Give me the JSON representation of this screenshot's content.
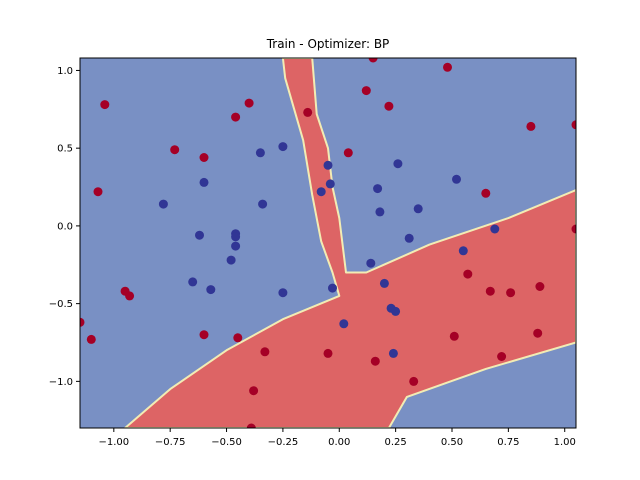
{
  "chart_data": {
    "type": "scatter",
    "title": "Train - Optimizer: BP",
    "xlabel": "",
    "ylabel": "",
    "xlim": [
      -1.15,
      1.05
    ],
    "ylim": [
      -1.3,
      1.08
    ],
    "grid": false,
    "xticks": [
      -1.0,
      -0.75,
      -0.5,
      -0.25,
      0.0,
      0.25,
      0.5,
      0.75,
      1.0
    ],
    "xtick_labels": [
      "−1.00",
      "−0.75",
      "−0.50",
      "−0.25",
      "0.00",
      "0.25",
      "0.50",
      "0.75",
      "1.00"
    ],
    "yticks": [
      -1.0,
      -0.5,
      0.0,
      0.5,
      1.0
    ],
    "ytick_labels": [
      "−1.0",
      "−0.5",
      "0.0",
      "0.5",
      "1.0"
    ],
    "colors": {
      "class_0_region": "#7990c4",
      "class_1_region": "#dd6465",
      "boundary": "#f2ecb4",
      "class_0_point": "#313695",
      "class_1_point": "#a50026"
    },
    "decision_regions": [
      {
        "class": 1,
        "polygon": [
          [
            -0.25,
            1.08
          ],
          [
            -0.12,
            1.08
          ],
          [
            -0.1,
            0.72
          ],
          [
            -0.05,
            0.5
          ],
          [
            -0.03,
            0.25
          ],
          [
            0.0,
            0.05
          ],
          [
            0.03,
            -0.3
          ],
          [
            0.12,
            -0.3
          ],
          [
            0.4,
            -0.12
          ],
          [
            0.75,
            0.05
          ],
          [
            1.05,
            0.23
          ],
          [
            1.05,
            -0.75
          ],
          [
            0.65,
            -0.92
          ],
          [
            0.3,
            -1.1
          ],
          [
            0.22,
            -1.3
          ],
          [
            -0.95,
            -1.3
          ],
          [
            -0.75,
            -1.05
          ],
          [
            -0.5,
            -0.8
          ],
          [
            -0.25,
            -0.6
          ],
          [
            0.0,
            -0.45
          ],
          [
            -0.03,
            -0.3
          ],
          [
            -0.08,
            -0.1
          ],
          [
            -0.12,
            0.2
          ],
          [
            -0.16,
            0.55
          ],
          [
            -0.2,
            0.75
          ],
          [
            -0.24,
            0.95
          ]
        ]
      }
    ],
    "series": [
      {
        "class": 0,
        "x": [
          -0.25,
          -0.34,
          -0.6,
          -0.78,
          -0.62,
          -0.46,
          -0.46,
          -0.46,
          -0.48,
          -0.57,
          -0.65,
          -0.35,
          -0.25,
          -0.05,
          -0.08,
          -0.04,
          -0.03,
          0.02,
          0.14,
          0.17,
          0.18,
          0.2,
          0.23,
          0.25,
          0.24,
          0.26,
          0.31,
          0.35,
          0.52,
          0.55,
          0.69
        ],
        "y": [
          -0.43,
          0.14,
          0.28,
          0.14,
          -0.06,
          -0.05,
          -0.07,
          -0.13,
          -0.22,
          -0.41,
          -0.36,
          0.47,
          0.51,
          0.39,
          0.22,
          0.27,
          -0.4,
          -0.63,
          -0.24,
          0.24,
          0.09,
          -0.37,
          -0.53,
          -0.55,
          -0.82,
          0.4,
          -0.08,
          0.11,
          0.3,
          -0.16,
          -0.02
        ]
      },
      {
        "class": 1,
        "x": [
          -1.15,
          -1.1,
          -1.07,
          -1.04,
          -0.95,
          -0.93,
          -0.73,
          -0.6,
          -0.6,
          -0.46,
          -0.45,
          -0.4,
          -0.38,
          -0.39,
          -0.33,
          -0.14,
          -0.05,
          0.04,
          0.12,
          0.15,
          0.16,
          0.22,
          0.33,
          0.48,
          0.51,
          0.57,
          0.65,
          0.67,
          0.72,
          0.76,
          0.85,
          0.88,
          0.89,
          1.05,
          1.05
        ],
        "y": [
          -0.62,
          -0.73,
          0.22,
          0.78,
          -0.42,
          -0.45,
          0.49,
          0.44,
          -0.7,
          0.7,
          -0.72,
          0.79,
          -1.06,
          -1.3,
          -0.81,
          0.73,
          -0.82,
          0.47,
          0.87,
          1.08,
          -0.87,
          0.77,
          -1.0,
          1.02,
          -0.71,
          -0.31,
          0.21,
          -0.42,
          -0.84,
          -0.43,
          0.64,
          -0.69,
          -0.39,
          0.65,
          -0.02
        ]
      }
    ]
  }
}
